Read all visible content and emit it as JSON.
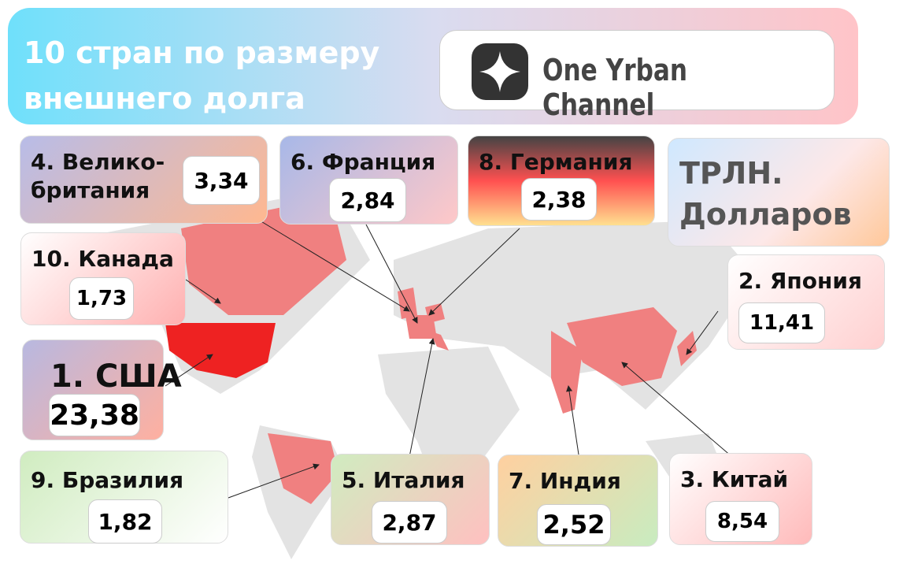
{
  "header": {
    "title_lines": [
      "10 стран по размеру",
      "внешнего долга"
    ],
    "channel": "One Yrban Channel"
  },
  "unit_lines": [
    "ТРЛН.",
    "Долларов"
  ],
  "countries": [
    {
      "label_lines": [
        "1. США"
      ],
      "value": "23,38"
    },
    {
      "label_lines": [
        "2. Япония"
      ],
      "value": "11,41"
    },
    {
      "label_lines": [
        "3. Китай"
      ],
      "value": "8,54"
    },
    {
      "label_lines": [
        "4. Велико-",
        "британия"
      ],
      "value": "3,34"
    },
    {
      "label_lines": [
        "5. Италия"
      ],
      "value": "2,87"
    },
    {
      "label_lines": [
        "6. Франция"
      ],
      "value": "2,84"
    },
    {
      "label_lines": [
        "7. Индия"
      ],
      "value": "2,52"
    },
    {
      "label_lines": [
        "8. Германия"
      ],
      "value": "2,38"
    },
    {
      "label_lines": [
        "9. Бразилия"
      ],
      "value": "1,82"
    },
    {
      "label_lines": [
        "10. Канада"
      ],
      "value": "1,73"
    }
  ]
}
